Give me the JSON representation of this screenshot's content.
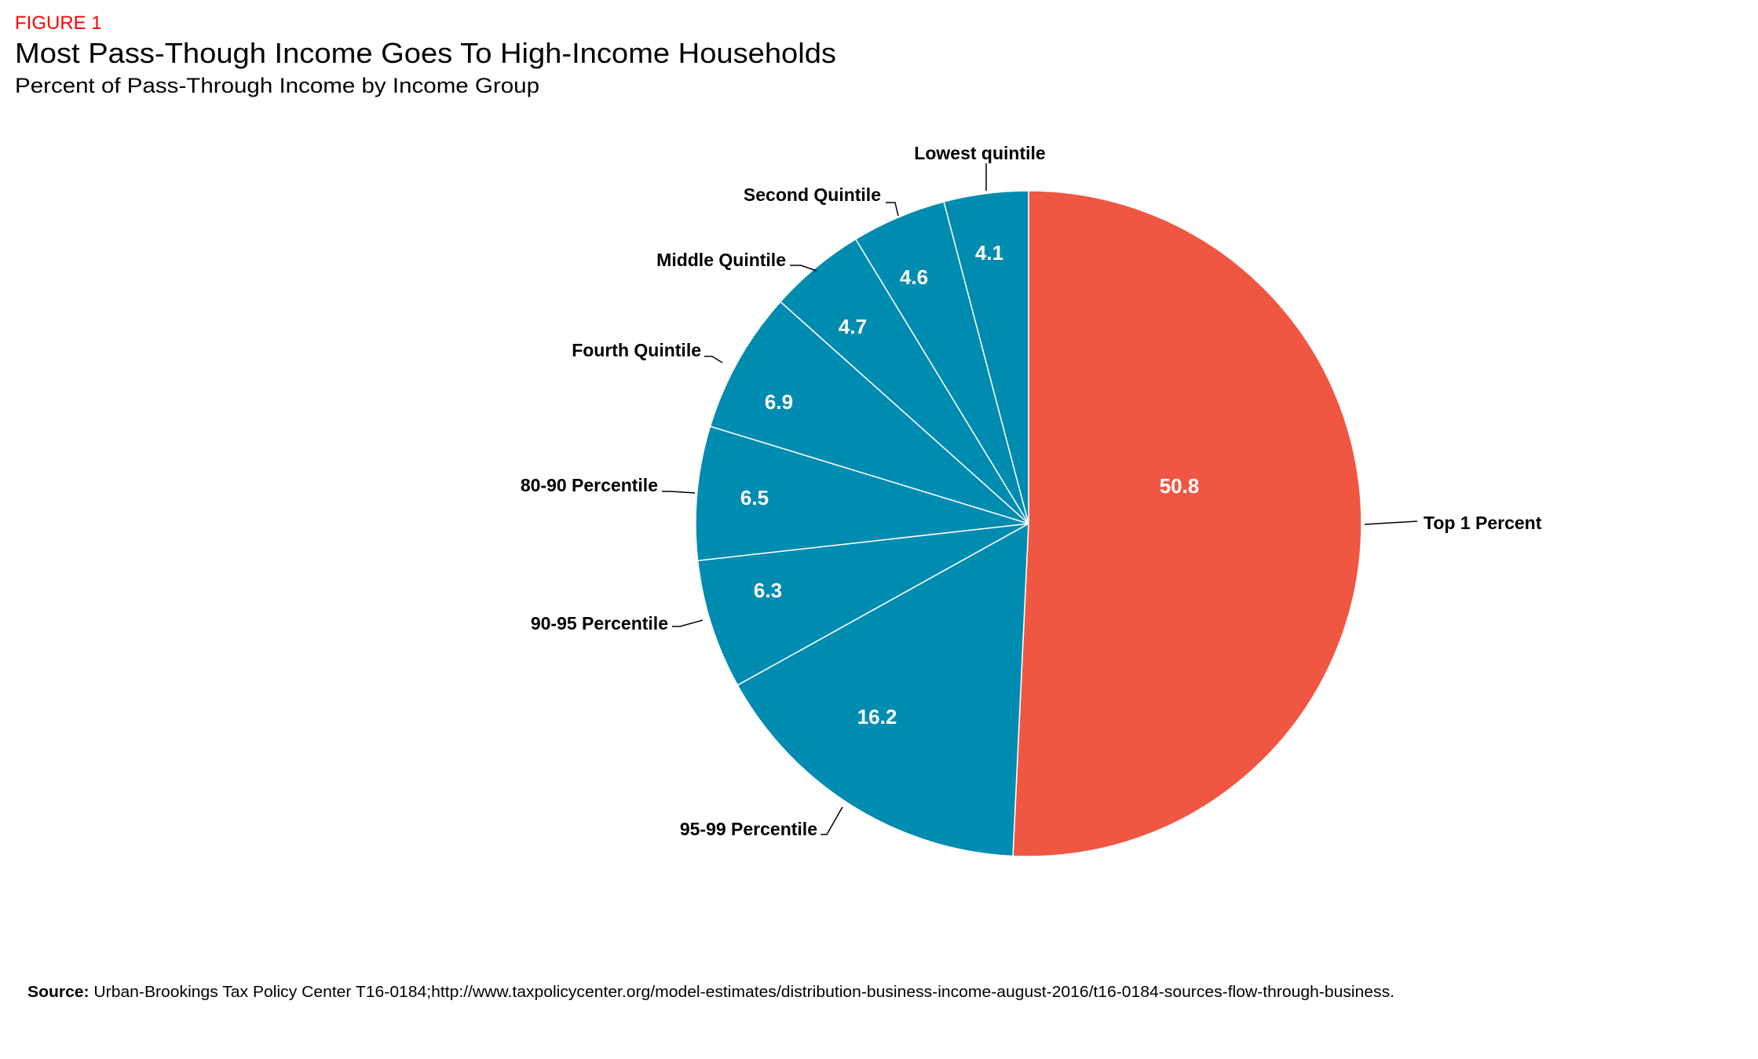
{
  "chart_data": {
    "type": "pie",
    "figure_label": "FIGURE 1",
    "title": "Most Pass-Though Income Goes To High-Income Households",
    "subtitle": "Percent of Pass-Through Income by Income Group",
    "categories": [
      "Top 1 Percent",
      "95-99 Percentile",
      "90-95 Percentile",
      "80-90 Percentile",
      "Fourth Quintile",
      "Middle Quintile",
      "Second Quintile",
      "Lowest quintile"
    ],
    "values": [
      50.8,
      16.2,
      6.3,
      6.5,
      6.9,
      4.7,
      4.6,
      4.1
    ],
    "value_labels": [
      "50.8",
      "16.2",
      "6.3",
      "6.5",
      "6.9",
      "4.7",
      "4.6",
      "4.1"
    ],
    "colors": [
      "#f05742",
      "#008bb0",
      "#008bb0",
      "#008bb0",
      "#008bb0",
      "#008bb0",
      "#008bb0",
      "#008bb0"
    ],
    "start": "top, clockwise",
    "source_label": "Source:",
    "source_text": "Urban-Brookings Tax Policy Center T16-0184;http://www.taxpolicycenter.org/model-estimates/distribution-business-income-august-2016/t16-0184-sources-flow-through-business."
  }
}
